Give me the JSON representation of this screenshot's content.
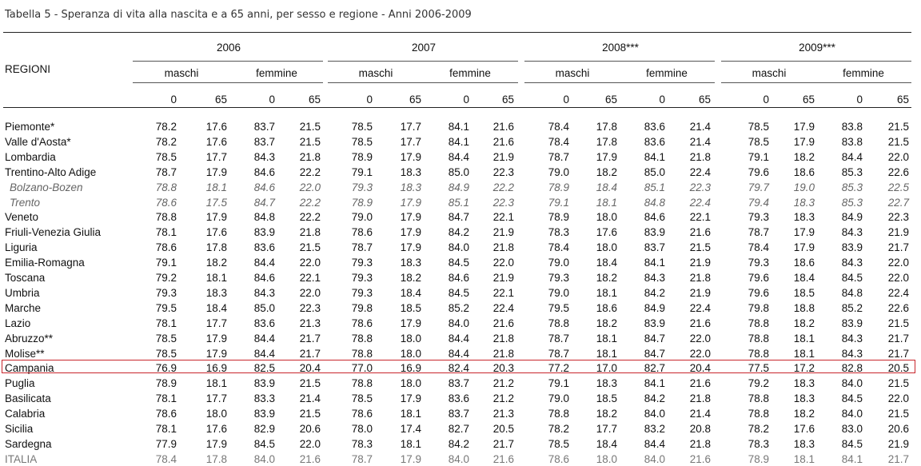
{
  "title": "Tabella 5 - Speranza di vita alla nascita e a 65 anni, per sesso e regione - Anni 2006-2009",
  "header": {
    "row_label": "REGIONI",
    "years": [
      "2006",
      "2007",
      "2008***",
      "2009***"
    ],
    "sexes": [
      "maschi",
      "femmine"
    ],
    "ages": [
      "0",
      "65"
    ]
  },
  "rows": [
    {
      "region": "Piemonte*",
      "style": "normal",
      "values": [
        "78.2",
        "17.6",
        "83.7",
        "21.5",
        "78.5",
        "17.7",
        "84.1",
        "21.6",
        "78.4",
        "17.8",
        "83.6",
        "21.4",
        "78.5",
        "17.9",
        "83.8",
        "21.5"
      ]
    },
    {
      "region": "Valle d'Aosta*",
      "style": "normal",
      "values": [
        "78.2",
        "17.6",
        "83.7",
        "21.5",
        "78.5",
        "17.7",
        "84.1",
        "21.6",
        "78.4",
        "17.8",
        "83.6",
        "21.4",
        "78.5",
        "17.9",
        "83.8",
        "21.5"
      ]
    },
    {
      "region": "Lombardia",
      "style": "normal",
      "values": [
        "78.5",
        "17.7",
        "84.3",
        "21.8",
        "78.9",
        "17.9",
        "84.4",
        "21.9",
        "78.7",
        "17.9",
        "84.1",
        "21.8",
        "79.1",
        "18.2",
        "84.4",
        "22.0"
      ]
    },
    {
      "region": "Trentino-Alto Adige",
      "style": "normal",
      "values": [
        "78.7",
        "17.9",
        "84.6",
        "22.2",
        "79.1",
        "18.3",
        "85.0",
        "22.3",
        "79.0",
        "18.2",
        "85.0",
        "22.4",
        "79.6",
        "18.6",
        "85.3",
        "22.6"
      ]
    },
    {
      "region": "Bolzano-Bozen",
      "style": "sub",
      "values": [
        "78.8",
        "18.1",
        "84.6",
        "22.0",
        "79.3",
        "18.3",
        "84.9",
        "22.2",
        "78.9",
        "18.4",
        "85.1",
        "22.3",
        "79.7",
        "19.0",
        "85.3",
        "22.5"
      ]
    },
    {
      "region": "Trento",
      "style": "sub",
      "values": [
        "78.6",
        "17.5",
        "84.7",
        "22.2",
        "78.9",
        "17.9",
        "85.1",
        "22.3",
        "79.1",
        "18.1",
        "84.8",
        "22.4",
        "79.4",
        "18.3",
        "85.3",
        "22.7"
      ]
    },
    {
      "region": "Veneto",
      "style": "normal",
      "values": [
        "78.8",
        "17.9",
        "84.8",
        "22.2",
        "79.0",
        "17.9",
        "84.7",
        "22.1",
        "78.9",
        "18.0",
        "84.6",
        "22.1",
        "79.3",
        "18.3",
        "84.9",
        "22.3"
      ]
    },
    {
      "region": "Friuli-Venezia Giulia",
      "style": "normal",
      "values": [
        "78.1",
        "17.6",
        "83.9",
        "21.8",
        "78.6",
        "17.9",
        "84.2",
        "21.9",
        "78.3",
        "17.6",
        "83.9",
        "21.6",
        "78.7",
        "17.9",
        "84.3",
        "21.9"
      ]
    },
    {
      "region": "Liguria",
      "style": "normal",
      "values": [
        "78.6",
        "17.8",
        "83.6",
        "21.5",
        "78.7",
        "17.9",
        "84.0",
        "21.8",
        "78.4",
        "18.0",
        "83.7",
        "21.5",
        "78.4",
        "17.9",
        "83.9",
        "21.7"
      ]
    },
    {
      "region": "Emilia-Romagna",
      "style": "normal",
      "values": [
        "79.1",
        "18.2",
        "84.4",
        "22.0",
        "79.3",
        "18.3",
        "84.5",
        "22.0",
        "79.0",
        "18.4",
        "84.1",
        "21.9",
        "79.3",
        "18.6",
        "84.3",
        "22.0"
      ]
    },
    {
      "region": "Toscana",
      "style": "normal",
      "values": [
        "79.2",
        "18.1",
        "84.6",
        "22.1",
        "79.3",
        "18.2",
        "84.6",
        "21.9",
        "79.3",
        "18.2",
        "84.3",
        "21.8",
        "79.6",
        "18.4",
        "84.5",
        "22.0"
      ]
    },
    {
      "region": "Umbria",
      "style": "normal",
      "values": [
        "79.3",
        "18.3",
        "84.3",
        "22.0",
        "79.3",
        "18.4",
        "84.5",
        "22.1",
        "79.0",
        "18.1",
        "84.2",
        "21.9",
        "79.6",
        "18.5",
        "84.8",
        "22.4"
      ]
    },
    {
      "region": "Marche",
      "style": "normal",
      "values": [
        "79.5",
        "18.4",
        "85.0",
        "22.3",
        "79.8",
        "18.5",
        "85.2",
        "22.4",
        "79.5",
        "18.6",
        "84.9",
        "22.4",
        "79.8",
        "18.8",
        "85.2",
        "22.6"
      ]
    },
    {
      "region": "Lazio",
      "style": "normal",
      "values": [
        "78.1",
        "17.7",
        "83.6",
        "21.3",
        "78.6",
        "17.9",
        "84.0",
        "21.6",
        "78.8",
        "18.2",
        "83.9",
        "21.6",
        "78.8",
        "18.2",
        "83.9",
        "21.5"
      ]
    },
    {
      "region": "Abruzzo**",
      "style": "normal",
      "values": [
        "78.5",
        "17.9",
        "84.4",
        "21.7",
        "78.8",
        "18.0",
        "84.4",
        "21.8",
        "78.7",
        "18.1",
        "84.7",
        "22.0",
        "78.8",
        "18.1",
        "84.3",
        "21.7"
      ]
    },
    {
      "region": "Molise**",
      "style": "normal",
      "values": [
        "78.5",
        "17.9",
        "84.4",
        "21.7",
        "78.8",
        "18.0",
        "84.4",
        "21.8",
        "78.7",
        "18.1",
        "84.7",
        "22.0",
        "78.8",
        "18.1",
        "84.3",
        "21.7"
      ]
    },
    {
      "region": "Campania",
      "style": "highlight",
      "values": [
        "76.9",
        "16.9",
        "82.5",
        "20.4",
        "77.0",
        "16.9",
        "82.4",
        "20.3",
        "77.2",
        "17.0",
        "82.7",
        "20.4",
        "77.5",
        "17.2",
        "82.8",
        "20.5"
      ]
    },
    {
      "region": "Puglia",
      "style": "normal",
      "values": [
        "78.9",
        "18.1",
        "83.9",
        "21.5",
        "78.8",
        "18.0",
        "83.7",
        "21.2",
        "79.1",
        "18.3",
        "84.1",
        "21.6",
        "79.2",
        "18.3",
        "84.0",
        "21.5"
      ]
    },
    {
      "region": "Basilicata",
      "style": "normal",
      "values": [
        "78.1",
        "17.7",
        "83.3",
        "21.4",
        "78.5",
        "17.9",
        "83.6",
        "21.2",
        "79.0",
        "18.5",
        "84.2",
        "21.8",
        "78.8",
        "18.3",
        "84.5",
        "22.0"
      ]
    },
    {
      "region": "Calabria",
      "style": "normal",
      "values": [
        "78.6",
        "18.0",
        "83.9",
        "21.5",
        "78.6",
        "18.1",
        "83.7",
        "21.3",
        "78.8",
        "18.2",
        "84.0",
        "21.4",
        "78.8",
        "18.2",
        "84.0",
        "21.5"
      ]
    },
    {
      "region": "Sicilia",
      "style": "normal",
      "values": [
        "78.1",
        "17.6",
        "82.9",
        "20.6",
        "78.0",
        "17.4",
        "82.7",
        "20.5",
        "78.2",
        "17.7",
        "83.2",
        "20.8",
        "78.2",
        "17.6",
        "83.0",
        "20.6"
      ]
    },
    {
      "region": "Sardegna",
      "style": "normal",
      "values": [
        "77.9",
        "17.9",
        "84.5",
        "22.0",
        "78.3",
        "18.1",
        "84.2",
        "21.7",
        "78.5",
        "18.4",
        "84.4",
        "21.8",
        "78.3",
        "18.3",
        "84.5",
        "21.9"
      ]
    },
    {
      "region": "ITALIA",
      "style": "total",
      "values": [
        "78.4",
        "17.8",
        "84.0",
        "21.6",
        "78.7",
        "17.9",
        "84.0",
        "21.6",
        "78.6",
        "18.0",
        "84.0",
        "21.6",
        "78.9",
        "18.1",
        "84.1",
        "21.7"
      ]
    }
  ],
  "colors": {
    "highlight_border": "#c8262c",
    "sub_text": "#666666",
    "total_text": "#777777"
  }
}
